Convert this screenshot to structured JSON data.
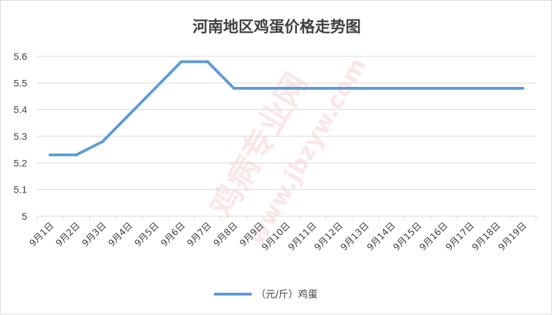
{
  "chart_data": {
    "type": "line",
    "title": "河南地区鸡蛋价格走势图",
    "categories": [
      "9月1日",
      "9月2日",
      "9月3日",
      "9月4日",
      "9月5日",
      "9月6日",
      "9月7日",
      "9月8日",
      "9月9日",
      "9月10日",
      "9月11日",
      "9月12日",
      "9月13日",
      "9月14日",
      "9月15日",
      "9月16日",
      "9月17日",
      "9月18日",
      "9月19日"
    ],
    "y_ticks": [
      "5",
      "5.1",
      "5.2",
      "5.3",
      "5.4",
      "5.5",
      "5.6"
    ],
    "ylim": [
      5,
      5.6
    ],
    "grid": true,
    "legend_position": "bottom",
    "series": [
      {
        "name": "（元/斤）鸡蛋",
        "color": "#5b9bd5",
        "values": [
          5.23,
          5.23,
          5.28,
          5.38,
          5.48,
          5.58,
          5.58,
          5.48,
          5.48,
          5.48,
          5.48,
          5.48,
          5.48,
          5.48,
          5.48,
          5.48,
          5.48,
          5.48,
          5.48
        ]
      }
    ]
  },
  "watermark": {
    "site_cn": "鸡病专业网",
    "site_url": "www.jbzyw.com"
  }
}
